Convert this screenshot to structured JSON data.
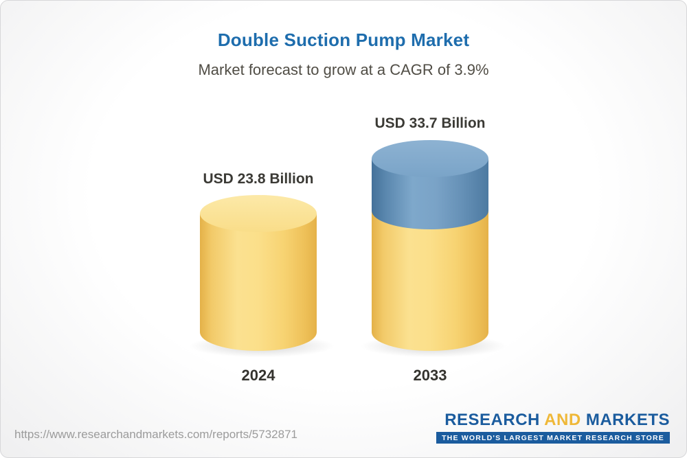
{
  "header": {
    "title": "Double Suction Pump Market",
    "subtitle": "Market forecast to grow at a CAGR of 3.9%"
  },
  "chart_data": {
    "type": "bar",
    "title": "Double Suction Pump Market",
    "subtitle": "Market forecast to grow at a CAGR of 3.9%",
    "cagr_percent": 3.9,
    "unit": "USD Billion",
    "categories": [
      "2024",
      "2033"
    ],
    "values": [
      23.8,
      33.7
    ],
    "value_labels": [
      "USD 23.8 Billion",
      "USD 33.7 Billion"
    ],
    "legend": false,
    "grid": false,
    "bar_style": "3d-cylinder",
    "colors": {
      "base_segment": "#F5CD66",
      "growth_segment": "#5E8FBA",
      "title": "#1E6DAD"
    }
  },
  "footer": {
    "url": "https://www.researchandmarkets.com/reports/5732871",
    "logo": {
      "word1": "RESEARCH",
      "word2": "AND",
      "word3": "MARKETS",
      "tagline": "THE WORLD'S LARGEST MARKET RESEARCH STORE"
    }
  }
}
